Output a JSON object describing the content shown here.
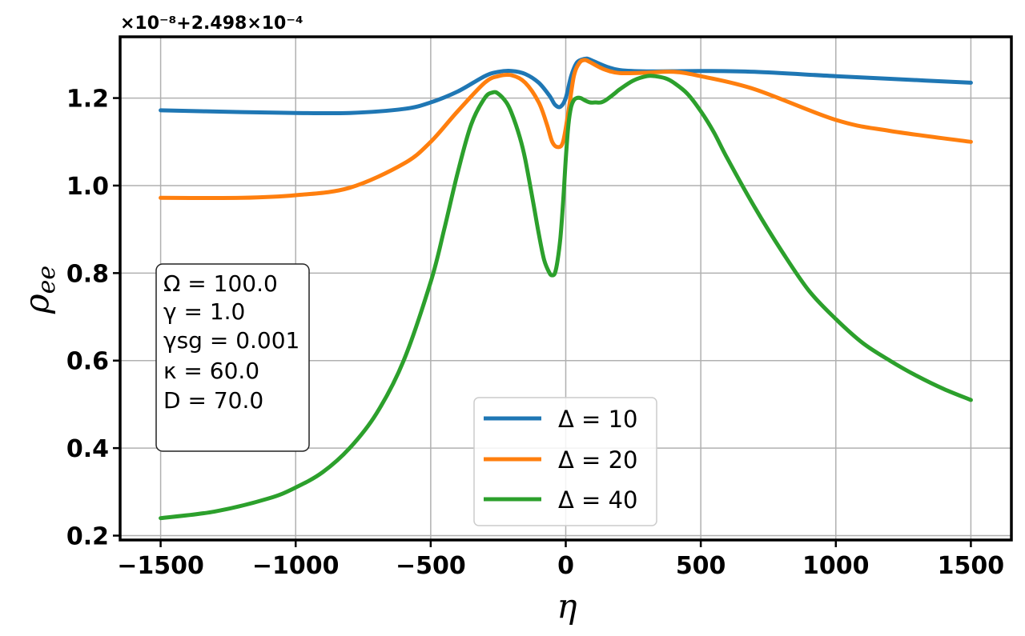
{
  "chart_data": {
    "type": "line",
    "title": "",
    "xlabel": "η",
    "ylabel": "ρ",
    "ylabel_sub": "ee",
    "xlim": [
      -1650,
      1650
    ],
    "ylim": [
      0.19,
      1.34
    ],
    "x_ticks": [
      -1500,
      -1000,
      -500,
      0,
      500,
      1000,
      1500
    ],
    "x_tick_labels": [
      "−1500",
      "−1000",
      "−500",
      "0",
      "500",
      "1000",
      "1500"
    ],
    "y_ticks": [
      0.2,
      0.4,
      0.6,
      0.8,
      1.0,
      1.2
    ],
    "y_tick_labels": [
      "0.2",
      "0.4",
      "0.6",
      "0.8",
      "1.0",
      "1.2"
    ],
    "offset_text": "×10⁻⁸+2.498×10⁻⁴",
    "grid": true,
    "legend_position": "lower-center",
    "parameters": [
      "Ω = 100.0",
      "γ = 1.0",
      "γsg = 0.001",
      "κ = 60.0",
      "D = 70.0"
    ],
    "series": [
      {
        "name": "Δ = 10",
        "color": "#1f77b4",
        "x": [
          -1500,
          -1200,
          -1000,
          -800,
          -600,
          -500,
          -400,
          -300,
          -250,
          -200,
          -150,
          -100,
          -60,
          -40,
          -20,
          0,
          20,
          40,
          60,
          80,
          100,
          150,
          200,
          300,
          500,
          700,
          1000,
          1200,
          1500
        ],
        "y": [
          1.172,
          1.168,
          1.166,
          1.166,
          1.175,
          1.19,
          1.215,
          1.25,
          1.26,
          1.262,
          1.255,
          1.235,
          1.205,
          1.185,
          1.18,
          1.2,
          1.25,
          1.28,
          1.288,
          1.29,
          1.285,
          1.272,
          1.264,
          1.261,
          1.262,
          1.26,
          1.25,
          1.244,
          1.235
        ]
      },
      {
        "name": "Δ = 20",
        "color": "#ff7f0e",
        "x": [
          -1500,
          -1200,
          -1000,
          -800,
          -600,
          -500,
          -400,
          -300,
          -250,
          -200,
          -150,
          -100,
          -70,
          -50,
          -30,
          -10,
          10,
          30,
          50,
          70,
          90,
          120,
          150,
          200,
          300,
          400,
          500,
          700,
          1000,
          1200,
          1500
        ],
        "y": [
          0.972,
          0.972,
          0.978,
          0.995,
          1.05,
          1.1,
          1.17,
          1.235,
          1.25,
          1.252,
          1.235,
          1.19,
          1.14,
          1.1,
          1.088,
          1.1,
          1.17,
          1.25,
          1.28,
          1.287,
          1.282,
          1.272,
          1.264,
          1.257,
          1.258,
          1.26,
          1.25,
          1.22,
          1.15,
          1.125,
          1.1
        ]
      },
      {
        "name": "Δ = 40",
        "color": "#2ca02c",
        "x": [
          -1500,
          -1300,
          -1100,
          -1000,
          -900,
          -800,
          -700,
          -600,
          -500,
          -450,
          -400,
          -350,
          -300,
          -270,
          -250,
          -220,
          -200,
          -170,
          -150,
          -120,
          -100,
          -80,
          -60,
          -50,
          -40,
          -30,
          -20,
          -10,
          0,
          10,
          20,
          30,
          40,
          55,
          70,
          90,
          110,
          130,
          150,
          180,
          200,
          250,
          300,
          330,
          370,
          400,
          450,
          500,
          550,
          600,
          700,
          800,
          900,
          1000,
          1100,
          1200,
          1300,
          1400,
          1500
        ],
        "y": [
          0.24,
          0.255,
          0.285,
          0.31,
          0.345,
          0.4,
          0.48,
          0.6,
          0.78,
          0.9,
          1.03,
          1.14,
          1.2,
          1.213,
          1.21,
          1.19,
          1.165,
          1.11,
          1.06,
          0.96,
          0.89,
          0.83,
          0.8,
          0.795,
          0.8,
          0.83,
          0.88,
          0.96,
          1.06,
          1.14,
          1.18,
          1.195,
          1.2,
          1.2,
          1.195,
          1.19,
          1.19,
          1.19,
          1.196,
          1.21,
          1.22,
          1.24,
          1.25,
          1.25,
          1.245,
          1.235,
          1.21,
          1.17,
          1.12,
          1.06,
          0.95,
          0.85,
          0.76,
          0.695,
          0.64,
          0.6,
          0.565,
          0.535,
          0.51
        ]
      }
    ]
  }
}
